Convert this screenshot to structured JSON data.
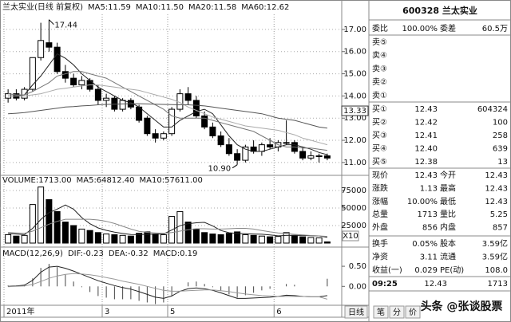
{
  "chart_data": [
    {
      "type": "candlestick",
      "title": "兰太实业(日线 前复权)",
      "categories": [
        "2011年",
        null,
        null,
        null,
        null,
        null,
        null,
        null,
        null,
        null,
        null,
        null,
        "3",
        null,
        null,
        null,
        null,
        null,
        null,
        null,
        "5",
        null,
        null,
        null,
        null,
        null,
        null,
        null,
        null,
        null,
        null,
        null,
        null,
        "6",
        null,
        null,
        null,
        null,
        null,
        null
      ],
      "open": [
        13.9,
        14.1,
        13.9,
        14.3,
        15.73,
        16.4,
        16.2,
        15.1,
        14.8,
        14.5,
        14.7,
        14.3,
        13.8,
        13.9,
        13.4,
        13.8,
        13.5,
        13.0,
        12.3,
        12.1,
        12.3,
        13.4,
        14.1,
        13.8,
        13.1,
        12.6,
        12.2,
        11.8,
        11.4,
        11.1,
        11.7,
        11.5,
        11.8,
        11.7,
        11.9,
        11.9,
        11.5,
        11.2,
        11.3,
        11.3
      ],
      "high": [
        14.3,
        14.3,
        14.4,
        15.73,
        17.3,
        17.44,
        16.4,
        15.4,
        15.0,
        14.9,
        14.8,
        14.5,
        14.1,
        14.0,
        13.9,
        13.9,
        13.6,
        13.1,
        12.5,
        12.4,
        13.5,
        14.3,
        14.4,
        14.0,
        13.3,
        12.8,
        12.4,
        12.1,
        11.6,
        11.8,
        12.0,
        11.9,
        12.1,
        12.0,
        12.9,
        12.0,
        11.7,
        11.5,
        11.4,
        11.4
      ],
      "low": [
        13.7,
        13.8,
        13.8,
        14.2,
        15.6,
        16.0,
        15.0,
        14.6,
        14.4,
        14.3,
        14.2,
        13.6,
        13.5,
        13.3,
        13.3,
        13.4,
        12.8,
        12.2,
        11.9,
        12.0,
        12.2,
        13.3,
        13.6,
        13.0,
        12.5,
        12.1,
        11.7,
        11.3,
        10.9,
        11.0,
        11.4,
        11.3,
        11.6,
        11.5,
        11.8,
        11.4,
        11.1,
        11.1,
        11.0,
        11.1
      ],
      "close": [
        14.1,
        13.9,
        14.3,
        15.73,
        16.5,
        16.2,
        15.1,
        14.8,
        14.5,
        14.7,
        14.3,
        13.8,
        13.9,
        13.4,
        13.8,
        13.5,
        12.9,
        12.3,
        12.1,
        12.3,
        13.4,
        14.1,
        13.8,
        13.1,
        12.6,
        12.2,
        11.8,
        11.4,
        11.1,
        11.7,
        11.5,
        11.8,
        11.7,
        11.9,
        11.9,
        11.5,
        11.2,
        11.3,
        11.3,
        11.2
      ],
      "series": [
        {
          "name": "MA5:11.59",
          "color": "#222222",
          "values": [
            14.0,
            14.0,
            14.05,
            14.5,
            14.9,
            15.4,
            15.9,
            15.7,
            15.4,
            15.0,
            14.7,
            14.4,
            14.2,
            14.0,
            13.8,
            13.7,
            13.5,
            13.2,
            12.9,
            12.6,
            12.6,
            12.9,
            13.1,
            13.3,
            13.4,
            13.2,
            12.7,
            12.2,
            11.8,
            11.6,
            11.5,
            11.5,
            11.6,
            11.7,
            11.8,
            11.8,
            11.7,
            11.6,
            11.45,
            11.35
          ]
        },
        {
          "name": "MA10:11.50",
          "color": "#777777",
          "values": [
            14.1,
            14.05,
            14.05,
            14.2,
            14.4,
            14.6,
            14.9,
            15.0,
            15.1,
            15.1,
            15.0,
            14.9,
            14.8,
            14.6,
            14.4,
            14.2,
            14.0,
            13.8,
            13.6,
            13.4,
            13.1,
            13.0,
            13.0,
            13.0,
            13.0,
            12.9,
            12.8,
            12.7,
            12.6,
            12.5,
            12.4,
            12.2,
            12.0,
            11.8,
            11.7,
            11.7,
            11.65,
            11.65,
            11.6,
            11.55
          ]
        },
        {
          "name": "MA20:11.58",
          "color": "#aaaaaa",
          "values": [
            14.0,
            14.0,
            14.0,
            14.05,
            14.1,
            14.2,
            14.3,
            14.35,
            14.4,
            14.45,
            14.5,
            14.5,
            14.45,
            14.4,
            14.35,
            14.3,
            14.25,
            14.15,
            14.05,
            13.95,
            13.85,
            13.7,
            13.5,
            13.35,
            13.2,
            13.05,
            12.95,
            12.85,
            12.75,
            12.65,
            12.6,
            12.55,
            12.5,
            12.45,
            12.35,
            12.25,
            12.1,
            12.0,
            11.9,
            11.8
          ]
        },
        {
          "name": "MA60:12.62",
          "color": "#555555",
          "values": [
            13.2,
            13.22,
            13.25,
            13.3,
            13.35,
            13.4,
            13.45,
            13.5,
            13.52,
            13.55,
            13.57,
            13.6,
            13.62,
            13.63,
            13.64,
            13.65,
            13.65,
            13.64,
            13.63,
            13.62,
            13.61,
            13.6,
            13.6,
            13.58,
            13.55,
            13.5,
            13.45,
            13.4,
            13.35,
            13.3,
            13.25,
            13.2,
            13.1,
            13.0,
            12.95,
            12.9,
            12.8,
            12.7,
            12.6,
            12.55
          ]
        }
      ],
      "high_label": "17.44",
      "low_label": "10.90",
      "cursor": {
        "value": 13.33,
        "label": "13.33"
      },
      "ylim": [
        10.6,
        17.68
      ],
      "yticks": [
        {
          "value": 11,
          "label": "11.00"
        },
        {
          "value": 12,
          "label": "12.00"
        },
        {
          "value": 13,
          "label": "13.00"
        },
        {
          "value": 14,
          "label": "14.00"
        },
        {
          "value": 15,
          "label": "15.00"
        },
        {
          "value": 16,
          "label": "16.00"
        },
        {
          "value": 17,
          "label": "17.00"
        }
      ],
      "grid": true
    },
    {
      "type": "bar",
      "title": "VOLUME:1713.00",
      "values": [
        12000,
        10000,
        11000,
        55000,
        80000,
        62000,
        45000,
        30000,
        25000,
        20000,
        18000,
        15000,
        13000,
        12000,
        11000,
        10000,
        14000,
        16000,
        13000,
        12000,
        38000,
        45000,
        30000,
        20000,
        15000,
        13000,
        12000,
        14000,
        16000,
        12000,
        11000,
        10000,
        9000,
        9500,
        15000,
        11000,
        9000,
        8000,
        7500,
        1713
      ],
      "series": [
        {
          "name": "MA5:64812.40",
          "color": "#222222",
          "values": [
            14000,
            13000,
            12000,
            21000,
            33600,
            43600,
            48400,
            54400,
            48400,
            36400,
            27600,
            21600,
            18200,
            15600,
            13800,
            12200,
            12000,
            12600,
            12800,
            13000,
            18600,
            24800,
            27600,
            29000,
            29600,
            24600,
            18000,
            14800,
            13800,
            13400,
            13000,
            12600,
            11600,
            10300,
            10900,
            10900,
            10900,
            10500,
            10200,
            8300
          ]
        },
        {
          "name": "MA10:57611.00",
          "color": "#888888",
          "values": [
            15000,
            14500,
            14000,
            17000,
            22000,
            27000,
            31000,
            34000,
            34000,
            34000,
            34000,
            33000,
            31000,
            28000,
            24000,
            20000,
            16800,
            15400,
            14500,
            14000,
            15000,
            17000,
            19000,
            20500,
            20500,
            20000,
            20000,
            20500,
            21000,
            21000,
            20000,
            18000,
            16000,
            14400,
            13500,
            12500,
            11700,
            10800,
            10200,
            9500
          ]
        }
      ],
      "ylim": [
        0,
        83000
      ],
      "yticks": [
        25000,
        50000,
        75000
      ],
      "y_unit_label": "X10",
      "grid": true
    },
    {
      "type": "macd",
      "title": "MACD(12,26,9)",
      "series": [
        {
          "name": "DIF:-0.23",
          "color": "#222222",
          "values": [
            0.0,
            0.01,
            0.03,
            0.15,
            0.35,
            0.48,
            0.5,
            0.45,
            0.38,
            0.3,
            0.22,
            0.14,
            0.08,
            0.02,
            -0.03,
            -0.07,
            -0.13,
            -0.2,
            -0.27,
            -0.3,
            -0.24,
            -0.12,
            -0.06,
            -0.04,
            -0.06,
            -0.1,
            -0.16,
            -0.23,
            -0.3,
            -0.3,
            -0.29,
            -0.28,
            -0.27,
            -0.25,
            -0.22,
            -0.23,
            -0.25,
            -0.26,
            -0.26,
            -0.23
          ]
        },
        {
          "name": "DEA:-0.32",
          "color": "#999999",
          "values": [
            -0.01,
            0.0,
            0.01,
            0.05,
            0.12,
            0.2,
            0.26,
            0.3,
            0.32,
            0.31,
            0.29,
            0.26,
            0.22,
            0.18,
            0.13,
            0.09,
            0.05,
            0.0,
            -0.05,
            -0.1,
            -0.12,
            -0.12,
            -0.11,
            -0.1,
            -0.09,
            -0.09,
            -0.11,
            -0.13,
            -0.16,
            -0.19,
            -0.21,
            -0.23,
            -0.24,
            -0.25,
            -0.25,
            -0.25,
            -0.25,
            -0.26,
            -0.26,
            -0.32
          ]
        },
        {
          "name": "MACD:0.19",
          "color": "#444444",
          "values": [
            0.02,
            0.02,
            0.04,
            0.2,
            0.46,
            0.56,
            0.48,
            0.3,
            0.12,
            -0.02,
            -0.14,
            -0.24,
            -0.28,
            -0.32,
            -0.32,
            -0.32,
            -0.36,
            -0.4,
            -0.44,
            -0.4,
            -0.24,
            0.0,
            0.1,
            0.12,
            0.06,
            -0.02,
            -0.1,
            -0.2,
            -0.28,
            -0.22,
            -0.16,
            -0.1,
            -0.06,
            0.0,
            0.06,
            0.04,
            0.0,
            0.0,
            0.0,
            0.19
          ]
        }
      ],
      "ylim": [
        -0.45,
        0.68
      ],
      "yticks": [
        {
          "value": 0,
          "label": "0.00"
        },
        {
          "value": 0.5,
          "label": "0.50"
        }
      ]
    }
  ],
  "quote": {
    "title": "600328 兰太实业",
    "weibi": [
      "委比",
      "100.00%",
      "委差",
      "60.5万"
    ],
    "sell": [
      "卖⑤",
      "卖④",
      "卖③",
      "卖②",
      "卖①"
    ],
    "buy": [
      [
        "买①",
        "12.43",
        "604324"
      ],
      [
        "买②",
        "12.42",
        "100"
      ],
      [
        "买③",
        "12.41",
        "258"
      ],
      [
        "买④",
        "12.40",
        "639"
      ],
      [
        "买⑤",
        "12.38",
        "13"
      ]
    ],
    "stats": [
      [
        "现价",
        "12.43",
        "今开",
        "12.43"
      ],
      [
        "涨跌",
        "1.13",
        "最高",
        "12.43"
      ],
      [
        "涨幅",
        "10.00%",
        "最低",
        "12.43"
      ],
      [
        "总量",
        "1713",
        "量比",
        "5.25"
      ],
      [
        "外盘",
        "856",
        "内盘",
        "857"
      ],
      [
        "换手",
        "0.05%",
        "股本",
        "3.59亿"
      ],
      [
        "净资",
        "3.11",
        "流通",
        "3.59亿"
      ],
      [
        "收益(一)",
        "0.029",
        "PE(动)",
        "108.0"
      ]
    ],
    "tick": [
      "09:25",
      "12.43",
      "1713"
    ]
  },
  "tabs": [
    "日线",
    "笔",
    "分",
    "价"
  ],
  "watermark": "头条 @张谈股票"
}
